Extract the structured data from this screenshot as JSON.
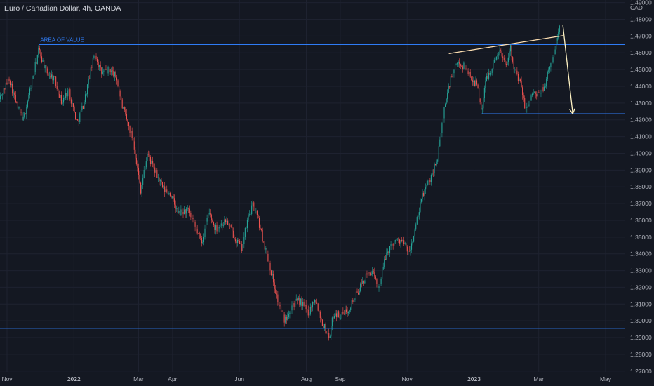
{
  "chart_data": {
    "type": "candlestick",
    "title": "Euro / Canadian Dollar, 4h, OANDA",
    "currency": "CAD",
    "ylim": [
      1.2695,
      1.4915
    ],
    "y_ticks": [
      "1.49000",
      "1.48000",
      "1.47000",
      "1.46000",
      "1.45000",
      "1.44000",
      "1.43000",
      "1.42000",
      "1.41000",
      "1.40000",
      "1.39000",
      "1.38000",
      "1.37000",
      "1.36000",
      "1.35000",
      "1.34000",
      "1.33000",
      "1.32000",
      "1.31000",
      "1.30000",
      "1.29000",
      "1.28000",
      "1.27000"
    ],
    "x_ticks": [
      "Nov",
      "2022",
      "Mar",
      "Apr",
      "Jun",
      "Aug",
      "Sep",
      "Nov",
      "2023",
      "Mar",
      "May"
    ],
    "x_bold_ticks": [
      "2022",
      "2023"
    ],
    "price_path": [
      [
        "2021-10-25",
        1.432
      ],
      [
        "2021-11-03",
        1.445
      ],
      [
        "2021-11-10",
        1.428
      ],
      [
        "2021-11-16",
        1.42
      ],
      [
        "2021-11-22",
        1.438
      ],
      [
        "2021-11-30",
        1.462
      ],
      [
        "2021-12-07",
        1.448
      ],
      [
        "2021-12-14",
        1.445
      ],
      [
        "2021-12-21",
        1.43
      ],
      [
        "2021-12-27",
        1.438
      ],
      [
        "2022-01-04",
        1.418
      ],
      [
        "2022-01-10",
        1.43
      ],
      [
        "2022-01-14",
        1.442
      ],
      [
        "2022-01-20",
        1.46
      ],
      [
        "2022-01-26",
        1.448
      ],
      [
        "2022-02-03",
        1.45
      ],
      [
        "2022-02-09",
        1.445
      ],
      [
        "2022-02-14",
        1.428
      ],
      [
        "2022-02-24",
        1.408
      ],
      [
        "2022-03-03",
        1.378
      ],
      [
        "2022-03-09",
        1.4
      ],
      [
        "2022-03-14",
        1.392
      ],
      [
        "2022-03-24",
        1.378
      ],
      [
        "2022-03-30",
        1.376
      ],
      [
        "2022-04-06",
        1.364
      ],
      [
        "2022-04-15",
        1.366
      ],
      [
        "2022-04-22",
        1.355
      ],
      [
        "2022-04-28",
        1.347
      ],
      [
        "2022-05-04",
        1.365
      ],
      [
        "2022-05-10",
        1.355
      ],
      [
        "2022-05-20",
        1.36
      ],
      [
        "2022-05-26",
        1.352
      ],
      [
        "2022-06-03",
        1.343
      ],
      [
        "2022-06-09",
        1.362
      ],
      [
        "2022-06-14",
        1.37
      ],
      [
        "2022-06-20",
        1.355
      ],
      [
        "2022-06-28",
        1.335
      ],
      [
        "2022-07-06",
        1.312
      ],
      [
        "2022-07-12",
        1.3
      ],
      [
        "2022-07-19",
        1.31
      ],
      [
        "2022-07-26",
        1.312
      ],
      [
        "2022-08-03",
        1.305
      ],
      [
        "2022-08-09",
        1.314
      ],
      [
        "2022-08-15",
        1.3
      ],
      [
        "2022-08-22",
        1.29
      ],
      [
        "2022-08-26",
        1.305
      ],
      [
        "2022-09-02",
        1.303
      ],
      [
        "2022-09-08",
        1.307
      ],
      [
        "2022-09-16",
        1.316
      ],
      [
        "2022-09-23",
        1.325
      ],
      [
        "2022-09-29",
        1.33
      ],
      [
        "2022-10-06",
        1.32
      ],
      [
        "2022-10-13",
        1.34
      ],
      [
        "2022-10-20",
        1.348
      ],
      [
        "2022-10-27",
        1.348
      ],
      [
        "2022-11-03",
        1.34
      ],
      [
        "2022-11-08",
        1.354
      ],
      [
        "2022-11-15",
        1.375
      ],
      [
        "2022-11-22",
        1.385
      ],
      [
        "2022-11-29",
        1.398
      ],
      [
        "2022-12-05",
        1.428
      ],
      [
        "2022-12-11",
        1.445
      ],
      [
        "2022-12-17",
        1.454
      ],
      [
        "2022-12-23",
        1.452
      ],
      [
        "2022-12-29",
        1.446
      ],
      [
        "2023-01-04",
        1.44
      ],
      [
        "2023-01-08",
        1.425
      ],
      [
        "2023-01-12",
        1.445
      ],
      [
        "2023-01-18",
        1.452
      ],
      [
        "2023-01-24",
        1.462
      ],
      [
        "2023-01-30",
        1.453
      ],
      [
        "2023-02-03",
        1.464
      ],
      [
        "2023-02-07",
        1.45
      ],
      [
        "2023-02-13",
        1.44
      ],
      [
        "2023-02-17",
        1.425
      ],
      [
        "2023-02-23",
        1.436
      ],
      [
        "2023-03-01",
        1.434
      ],
      [
        "2023-03-07",
        1.442
      ],
      [
        "2023-03-13",
        1.455
      ],
      [
        "2023-03-17",
        1.466
      ],
      [
        "2023-03-20",
        1.476
      ]
    ],
    "annotations": {
      "value_area_label": "AREA OF VALUE",
      "value_area_level": 1.465,
      "value_area_start": "2021-11-30",
      "support_level": 1.2956,
      "support_start": "2021-10-12",
      "target_level": 1.4236,
      "target_start": "2023-01-08",
      "trendline": [
        [
          "2022-12-09",
          1.4595
        ],
        [
          "2023-03-23",
          1.4702
        ]
      ],
      "projection_arrow": [
        [
          "2023-03-23",
          1.4767
        ],
        [
          "2023-04-01",
          1.4236
        ]
      ]
    }
  },
  "colors": {
    "background": "#141822",
    "grid": "#1e2230",
    "up": "#26a69a",
    "down": "#ef5350",
    "level_line": "#2f7cf6",
    "trendline": "#ffe0b2",
    "arrow": "#fff3c4",
    "axis_text": "#b2b5be"
  }
}
